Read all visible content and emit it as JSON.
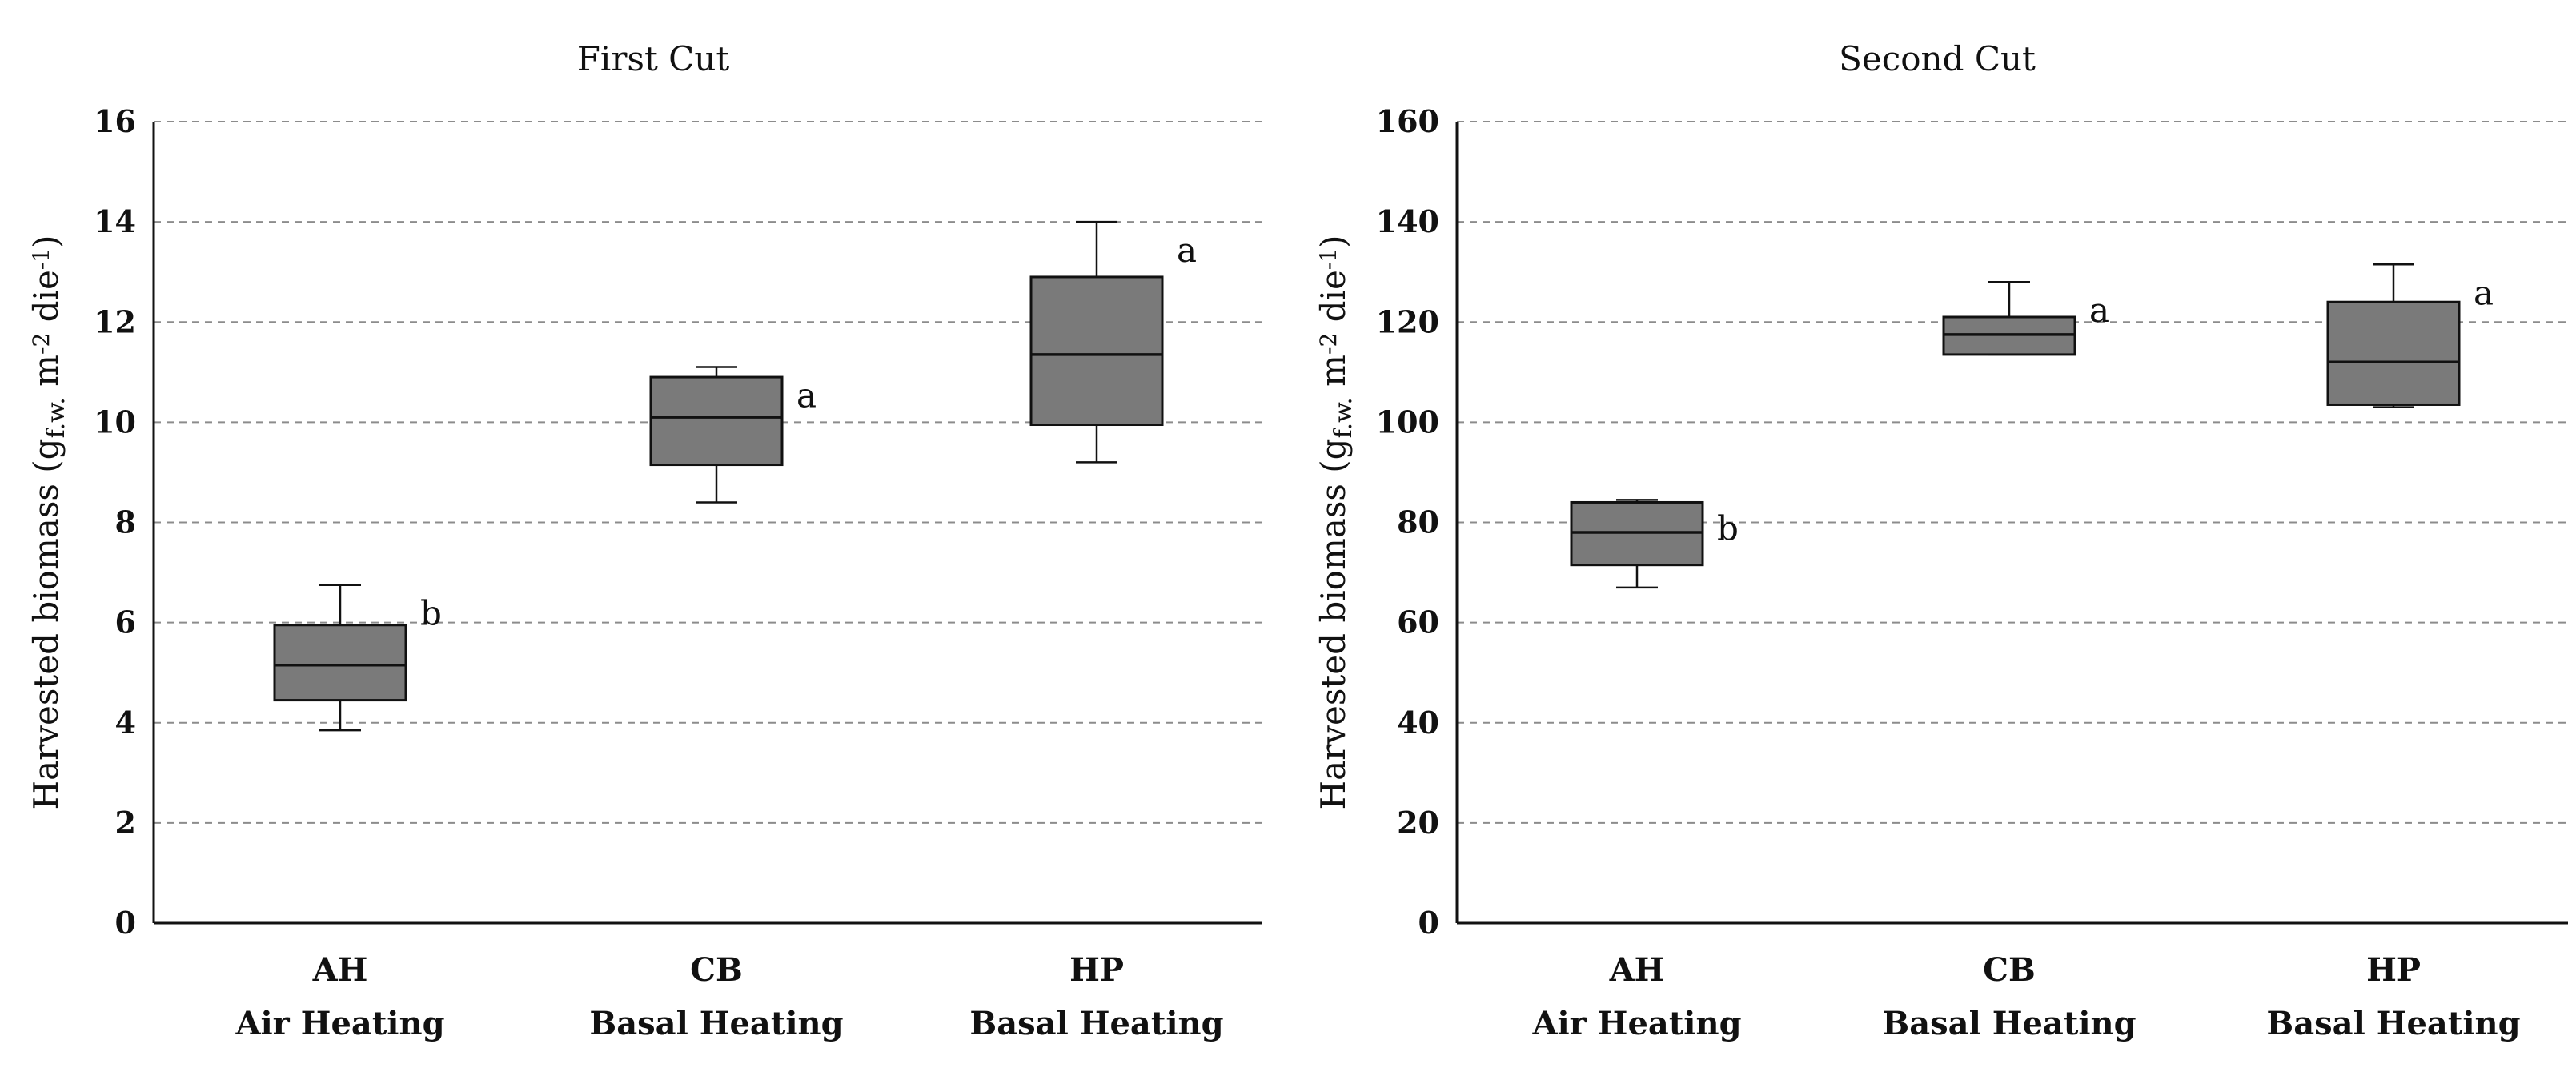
{
  "chart_data": [
    {
      "type": "box",
      "title": "First Cut",
      "ylabel_main": "Harvested biomass (g",
      "ylabel_sub": "f.w.",
      "ylabel_mid": " m",
      "ylabel_sup1": "-2",
      "ylabel_mid2": " die",
      "ylabel_sup2": "-1",
      "ylabel_end": ")",
      "ylim": [
        0,
        16
      ],
      "yticks": [
        0,
        2,
        4,
        6,
        8,
        10,
        12,
        14,
        16
      ],
      "ytick_labels": [
        "0",
        "2",
        "4",
        "6",
        "8",
        "10",
        "12",
        "14",
        "16"
      ],
      "grid": true,
      "categories": [
        {
          "code": "AH",
          "name": "Air Heating",
          "whisker_low": 3.85,
          "q1": 4.45,
          "median": 5.15,
          "q3": 5.95,
          "whisker_high": 6.75,
          "letter": "b"
        },
        {
          "code": "CB",
          "name": "Basal Heating",
          "whisker_low": 8.4,
          "q1": 9.15,
          "median": 10.1,
          "q3": 10.9,
          "whisker_high": 11.1,
          "letter": "a"
        },
        {
          "code": "HP",
          "name": "Basal Heating",
          "whisker_low": 9.2,
          "q1": 9.95,
          "median": 11.35,
          "q3": 12.9,
          "whisker_high": 14.0,
          "letter": "a"
        }
      ]
    },
    {
      "type": "box",
      "title": "Second Cut",
      "ylabel_main": "Harvested biomass (g",
      "ylabel_sub": "f.w.",
      "ylabel_mid": " m",
      "ylabel_sup1": "-2",
      "ylabel_mid2": " die",
      "ylabel_sup2": "-1",
      "ylabel_end": ")",
      "ylim": [
        0,
        160
      ],
      "yticks": [
        0,
        20,
        40,
        60,
        80,
        100,
        120,
        140,
        160
      ],
      "ytick_labels": [
        "0",
        "20",
        "40",
        "60",
        "80",
        "100",
        "120",
        "140",
        "160"
      ],
      "grid": true,
      "categories": [
        {
          "code": "AH",
          "name": "Air Heating",
          "whisker_low": 67,
          "q1": 71.5,
          "median": 78,
          "q3": 84,
          "whisker_high": 84.5,
          "letter": "b"
        },
        {
          "code": "CB",
          "name": "Basal Heating",
          "whisker_low": 113.5,
          "q1": 113.5,
          "median": 117.5,
          "q3": 121,
          "whisker_high": 128,
          "letter": "a"
        },
        {
          "code": "HP",
          "name": "Basal Heating",
          "whisker_low": 103,
          "q1": 103.5,
          "median": 112,
          "q3": 124,
          "whisker_high": 131.5,
          "letter": "a"
        }
      ]
    }
  ]
}
